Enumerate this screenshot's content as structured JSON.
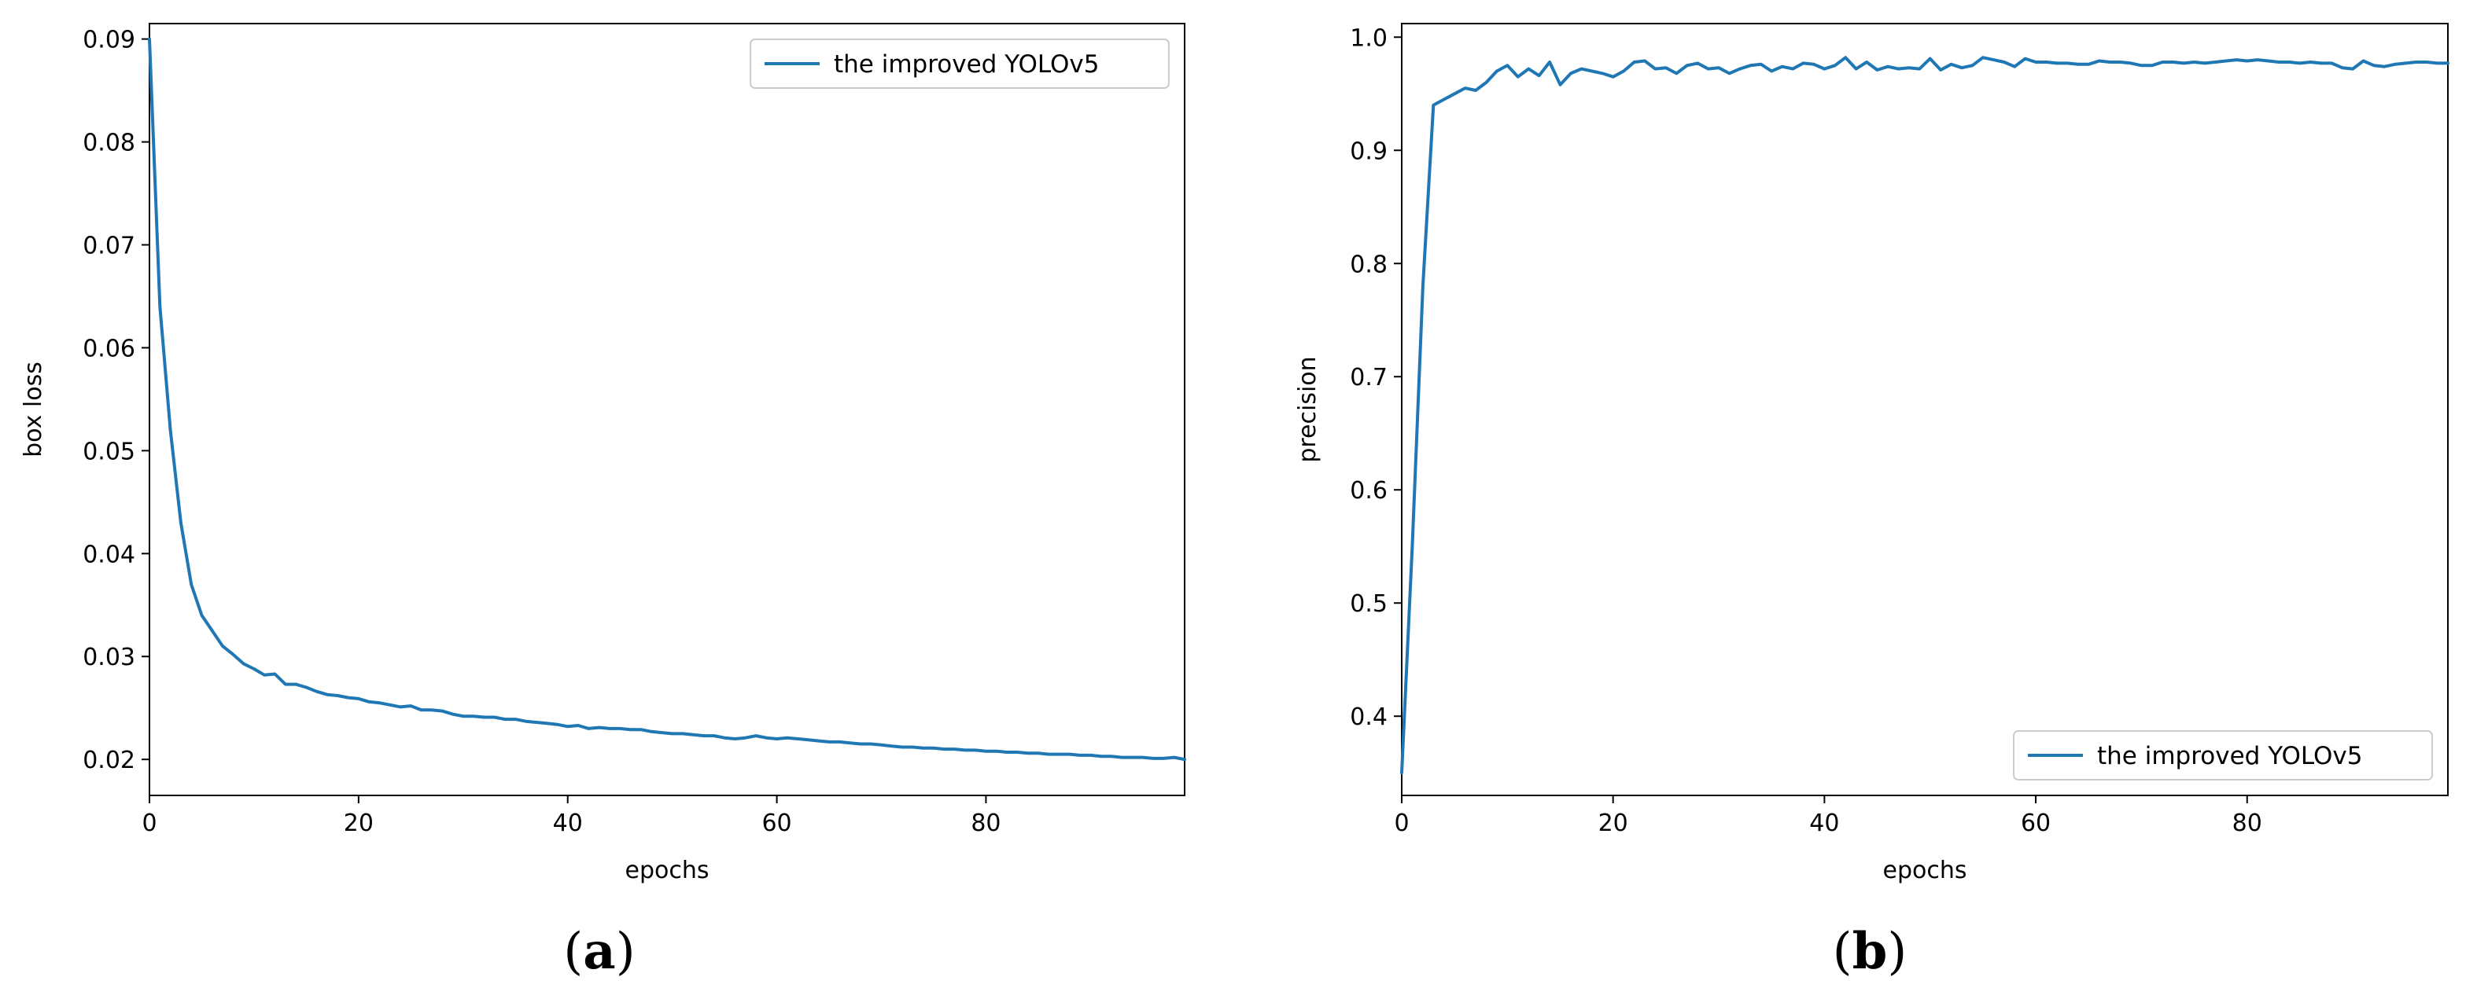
{
  "figure": {
    "panel_labels": [
      {
        "open": "(",
        "letter": "a",
        "close": ")"
      },
      {
        "open": "(",
        "letter": "b",
        "close": ")"
      }
    ],
    "line_color": "#1f77b4"
  },
  "chart_data": [
    {
      "type": "line",
      "xlabel": "epochs",
      "ylabel": "box loss",
      "xlim": [
        0,
        99
      ],
      "ylim": [
        0.0165,
        0.0915
      ],
      "xticks": [
        0,
        20,
        40,
        60,
        80
      ],
      "yticks": [
        0.02,
        0.03,
        0.04,
        0.05,
        0.06,
        0.07,
        0.08,
        0.09
      ],
      "grid": false,
      "legend_position": "top-right",
      "series": [
        {
          "name": "the improved YOLOv5",
          "x": [
            0,
            1,
            2,
            3,
            4,
            5,
            6,
            7,
            8,
            9,
            10,
            11,
            12,
            13,
            14,
            15,
            16,
            17,
            18,
            19,
            20,
            21,
            22,
            23,
            24,
            25,
            26,
            27,
            28,
            29,
            30,
            31,
            32,
            33,
            34,
            35,
            36,
            37,
            38,
            39,
            40,
            41,
            42,
            43,
            44,
            45,
            46,
            47,
            48,
            49,
            50,
            51,
            52,
            53,
            54,
            55,
            56,
            57,
            58,
            59,
            60,
            61,
            62,
            63,
            64,
            65,
            66,
            67,
            68,
            69,
            70,
            71,
            72,
            73,
            74,
            75,
            76,
            77,
            78,
            79,
            80,
            81,
            82,
            83,
            84,
            85,
            86,
            87,
            88,
            89,
            90,
            91,
            92,
            93,
            94,
            95,
            96,
            97,
            98,
            99
          ],
          "values": [
            0.09,
            0.064,
            0.052,
            0.043,
            0.037,
            0.034,
            0.0325,
            0.031,
            0.0302,
            0.0293,
            0.0288,
            0.0282,
            0.0283,
            0.0273,
            0.0273,
            0.027,
            0.0266,
            0.0263,
            0.0262,
            0.026,
            0.0259,
            0.0256,
            0.0255,
            0.0253,
            0.0251,
            0.0252,
            0.0248,
            0.0248,
            0.0247,
            0.0244,
            0.0242,
            0.0242,
            0.0241,
            0.0241,
            0.0239,
            0.0239,
            0.0237,
            0.0236,
            0.0235,
            0.0234,
            0.0232,
            0.0233,
            0.023,
            0.0231,
            0.023,
            0.023,
            0.0229,
            0.0229,
            0.0227,
            0.0226,
            0.0225,
            0.0225,
            0.0224,
            0.0223,
            0.0223,
            0.0221,
            0.022,
            0.0221,
            0.0223,
            0.0221,
            0.022,
            0.0221,
            0.022,
            0.0219,
            0.0218,
            0.0217,
            0.0217,
            0.0216,
            0.0215,
            0.0215,
            0.0214,
            0.0213,
            0.0212,
            0.0212,
            0.0211,
            0.0211,
            0.021,
            0.021,
            0.0209,
            0.0209,
            0.0208,
            0.0208,
            0.0207,
            0.0207,
            0.0206,
            0.0206,
            0.0205,
            0.0205,
            0.0205,
            0.0204,
            0.0204,
            0.0203,
            0.0203,
            0.0202,
            0.0202,
            0.0202,
            0.0201,
            0.0201,
            0.0202,
            0.02
          ]
        }
      ]
    },
    {
      "type": "line",
      "xlabel": "epochs",
      "ylabel": "precision",
      "xlim": [
        0,
        99
      ],
      "ylim": [
        0.33,
        1.012
      ],
      "xticks": [
        0,
        20,
        40,
        60,
        80
      ],
      "yticks": [
        0.4,
        0.5,
        0.6,
        0.7,
        0.8,
        0.9,
        1.0
      ],
      "grid": false,
      "legend_position": "bottom-right",
      "series": [
        {
          "name": "the improved YOLOv5",
          "x": [
            0,
            1,
            2,
            3,
            4,
            5,
            6,
            7,
            8,
            9,
            10,
            11,
            12,
            13,
            14,
            15,
            16,
            17,
            18,
            19,
            20,
            21,
            22,
            23,
            24,
            25,
            26,
            27,
            28,
            29,
            30,
            31,
            32,
            33,
            34,
            35,
            36,
            37,
            38,
            39,
            40,
            41,
            42,
            43,
            44,
            45,
            46,
            47,
            48,
            49,
            50,
            51,
            52,
            53,
            54,
            55,
            56,
            57,
            58,
            59,
            60,
            61,
            62,
            63,
            64,
            65,
            66,
            67,
            68,
            69,
            70,
            71,
            72,
            73,
            74,
            75,
            76,
            77,
            78,
            79,
            80,
            81,
            82,
            83,
            84,
            85,
            86,
            87,
            88,
            89,
            90,
            91,
            92,
            93,
            94,
            95,
            96,
            97,
            98,
            99
          ],
          "values": [
            0.35,
            0.55,
            0.78,
            0.94,
            0.945,
            0.95,
            0.955,
            0.953,
            0.96,
            0.97,
            0.975,
            0.965,
            0.972,
            0.966,
            0.978,
            0.958,
            0.968,
            0.972,
            0.97,
            0.968,
            0.965,
            0.97,
            0.978,
            0.979,
            0.972,
            0.973,
            0.968,
            0.975,
            0.977,
            0.972,
            0.973,
            0.968,
            0.972,
            0.975,
            0.976,
            0.97,
            0.974,
            0.972,
            0.977,
            0.976,
            0.972,
            0.975,
            0.982,
            0.972,
            0.978,
            0.971,
            0.974,
            0.972,
            0.973,
            0.972,
            0.981,
            0.971,
            0.976,
            0.973,
            0.975,
            0.982,
            0.98,
            0.978,
            0.974,
            0.981,
            0.978,
            0.978,
            0.977,
            0.977,
            0.976,
            0.976,
            0.979,
            0.978,
            0.978,
            0.977,
            0.975,
            0.975,
            0.978,
            0.978,
            0.977,
            0.978,
            0.977,
            0.978,
            0.979,
            0.98,
            0.979,
            0.98,
            0.979,
            0.978,
            0.978,
            0.977,
            0.978,
            0.977,
            0.977,
            0.973,
            0.972,
            0.979,
            0.975,
            0.974,
            0.976,
            0.977,
            0.978,
            0.978,
            0.977,
            0.977
          ]
        }
      ]
    }
  ]
}
